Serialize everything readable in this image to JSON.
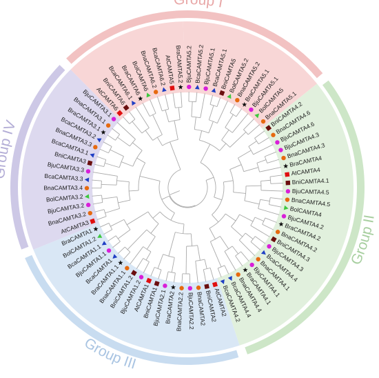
{
  "groups": [
    {
      "key": "I",
      "label": "Group I",
      "text_color": "#e8a7a7",
      "band_color": "#f2c2c2",
      "fill_color": "#f8d6d6"
    },
    {
      "key": "II",
      "label": "Group II",
      "text_color": "#a8cfa0",
      "band_color": "#cde6c7",
      "fill_color": "#e1f0dd"
    },
    {
      "key": "III",
      "label": "Group III",
      "text_color": "#a9c4e2",
      "band_color": "#c8dcf0",
      "fill_color": "#d9e7f5"
    },
    {
      "key": "IV",
      "label": "Group IV",
      "text_color": "#b3add6",
      "band_color": "#cdc8e6",
      "fill_color": "#ddd9ef"
    }
  ],
  "marker_legend": {
    "Bju": {
      "shape": "circle",
      "color": "#d81fd8"
    },
    "Bna": {
      "shape": "circle",
      "color": "#e66a10"
    },
    "Bra": {
      "shape": "star",
      "color": "#111111"
    },
    "Bca": {
      "shape": "triangle",
      "color": "#1f3fc4"
    },
    "Bol": {
      "shape": "triangle",
      "color": "#3ec83e"
    },
    "Bni": {
      "shape": "square",
      "color": "#6b0f0f"
    },
    "At": {
      "shape": "square",
      "color": "#e01010"
    }
  },
  "leaves": [
    {
      "label": "BjuCAMTA5.2",
      "group": "I",
      "species": "Bju"
    },
    {
      "label": "BcaCAMTA5.2",
      "group": "I",
      "species": "Bca"
    },
    {
      "label": "BjuCAMTA5.1",
      "group": "I",
      "species": "Bju"
    },
    {
      "label": "BcaCAMTA5.1",
      "group": "I",
      "species": "Bca"
    },
    {
      "label": "BniCAMTA5",
      "group": "I",
      "species": "Bni"
    },
    {
      "label": "BolCAMTA5.2",
      "group": "I",
      "species": "Bol"
    },
    {
      "label": "BnaCAMTA5.2",
      "group": "I",
      "species": "Bna"
    },
    {
      "label": "BraCAMTA5.1",
      "group": "I",
      "species": "Bra"
    },
    {
      "label": "BjuCAMTA5.1",
      "group": "I",
      "species": "Bju"
    },
    {
      "label": "BolCAMTA5",
      "group": "I",
      "species": "Bol"
    },
    {
      "label": "BnaCAMTA5.1",
      "group": "I",
      "species": "Bna"
    },
    {
      "label": "BniCAMTA4.2",
      "group": "II",
      "species": "Bni"
    },
    {
      "label": "BnaCAMTA4.6",
      "group": "II",
      "species": "Bna"
    },
    {
      "label": "BjuCAMTA4.6",
      "group": "II",
      "species": "Bju"
    },
    {
      "label": "BjuCAMTA4.3",
      "group": "II",
      "species": "Bju"
    },
    {
      "label": "BnaCAMTA4.3",
      "group": "II",
      "species": "Bna"
    },
    {
      "label": "BraCAMTA4",
      "group": "II",
      "species": "Bra"
    },
    {
      "label": "AtCAMTA4",
      "group": "II",
      "species": "At"
    },
    {
      "label": "BniCAMTA4.1",
      "group": "II",
      "species": "Bni"
    },
    {
      "label": "BjuCAMTA4.5",
      "group": "II",
      "species": "Bju"
    },
    {
      "label": "BnaCAMTA4.5",
      "group": "II",
      "species": "Bna"
    },
    {
      "label": "BolCAMTA4",
      "group": "II",
      "species": "Bol"
    },
    {
      "label": "BjuCAMTA4.2",
      "group": "II",
      "species": "Bju"
    },
    {
      "label": "BraCAMTA4.2",
      "group": "II",
      "species": "Bra"
    },
    {
      "label": "BnaCAMTA4.2",
      "group": "II",
      "species": "Bna"
    },
    {
      "label": "BniCAMTA4.3",
      "group": "II",
      "species": "Bni"
    },
    {
      "label": "BjuCAMTA4.3",
      "group": "II",
      "species": "Bju"
    },
    {
      "label": "BcaCAMTA4.4",
      "group": "II",
      "species": "Bca"
    },
    {
      "label": "BnaCAMTA4.1",
      "group": "II",
      "species": "Bna"
    },
    {
      "label": "BjuCAMTA4.1",
      "group": "II",
      "species": "Bju"
    },
    {
      "label": "BraCAMTA4.1",
      "group": "II",
      "species": "Bra"
    },
    {
      "label": "BnaCAMTA4.4",
      "group": "II",
      "species": "Bna"
    },
    {
      "label": "BcaCAMTA4.4",
      "group": "II",
      "species": "Bca"
    },
    {
      "label": "BcaCAMTA4.2",
      "group": "II",
      "species": "Bca"
    },
    {
      "label": "AtCAMTA2",
      "group": "III",
      "species": "At"
    },
    {
      "label": "BniCAMTA2",
      "group": "III",
      "species": "Bni"
    },
    {
      "label": "BnaCAMTA2",
      "group": "III",
      "species": "Bna"
    },
    {
      "label": "BjuCAMTA2.2",
      "group": "III",
      "species": "Bju"
    },
    {
      "label": "BnaCAMTA2.2",
      "group": "III",
      "species": "Bna"
    },
    {
      "label": "BraCAMTA2",
      "group": "III",
      "species": "Bra"
    },
    {
      "label": "BjuCAMTA2.1",
      "group": "III",
      "species": "Bju"
    },
    {
      "label": "BniCAMTA1",
      "group": "III",
      "species": "Bni"
    },
    {
      "label": "AtCAMTA1",
      "group": "III",
      "species": "At"
    },
    {
      "label": "BjuCAMTA1.2",
      "group": "III",
      "species": "Bju"
    },
    {
      "label": "BniCAMTA1.2",
      "group": "III",
      "species": "Bni"
    },
    {
      "label": "BnaCAMTA1.1",
      "group": "III",
      "species": "Bna"
    },
    {
      "label": "BraCAMTA1.1",
      "group": "III",
      "species": "Bra"
    },
    {
      "label": "BcaCAMTA1",
      "group": "III",
      "species": "Bca"
    },
    {
      "label": "BjuCAMTA1.1",
      "group": "III",
      "species": "Bju"
    },
    {
      "label": "BcaCAMTA1.1",
      "group": "III",
      "species": "Bca"
    },
    {
      "label": "BolCAMTA1.2",
      "group": "III",
      "species": "Bol"
    },
    {
      "label": "BraCAMTA1",
      "group": "III",
      "species": "Bra"
    },
    {
      "label": "AtCAMTA3",
      "group": "IV",
      "species": "At"
    },
    {
      "label": "BnaCAMTA3.2",
      "group": "IV",
      "species": "Bna"
    },
    {
      "label": "BjuCAMTA3.2",
      "group": "IV",
      "species": "Bju"
    },
    {
      "label": "BolCAMTA3.2",
      "group": "IV",
      "species": "Bol"
    },
    {
      "label": "BnaCAMTA3.4",
      "group": "IV",
      "species": "Bna"
    },
    {
      "label": "BcaCAMTA3.3",
      "group": "IV",
      "species": "Bca"
    },
    {
      "label": "BjuCAMTA3.3",
      "group": "IV",
      "species": "Bju"
    },
    {
      "label": "BniCAMTA3",
      "group": "IV",
      "species": "Bni"
    },
    {
      "label": "BcaCAMTA3.1",
      "group": "IV",
      "species": "Bca"
    },
    {
      "label": "BnaCAMTA3.3",
      "group": "IV",
      "species": "Bna"
    },
    {
      "label": "BcaCAMTA3.2",
      "group": "IV",
      "species": "Bca"
    },
    {
      "label": "BraCAMTA3.1",
      "group": "IV",
      "species": "Bra"
    },
    {
      "label": "BnaCAMTA3.1",
      "group": "IV",
      "species": "Bna"
    },
    {
      "label": "BjuCAMTA3.1",
      "group": "IV",
      "species": "Bju"
    },
    {
      "label": "AtCAMTA6",
      "group": "I",
      "species": "At"
    },
    {
      "label": "BniCAMTA6",
      "group": "I",
      "species": "Bni"
    },
    {
      "label": "BcaCAMTA6.1",
      "group": "I",
      "species": "Bca"
    },
    {
      "label": "BraCAMTA6",
      "group": "I",
      "species": "Bra"
    },
    {
      "label": "BolCAMTA6",
      "group": "I",
      "species": "Bol"
    },
    {
      "label": "BnaCAMTA6.2",
      "group": "I",
      "species": "Bna"
    },
    {
      "label": "BcaCAMTA6.2",
      "group": "I",
      "species": "Bca"
    },
    {
      "label": "AtCAMTA5",
      "group": "I",
      "species": "At"
    },
    {
      "label": "BraCAMTA5.2",
      "group": "I",
      "species": "Bra"
    }
  ]
}
